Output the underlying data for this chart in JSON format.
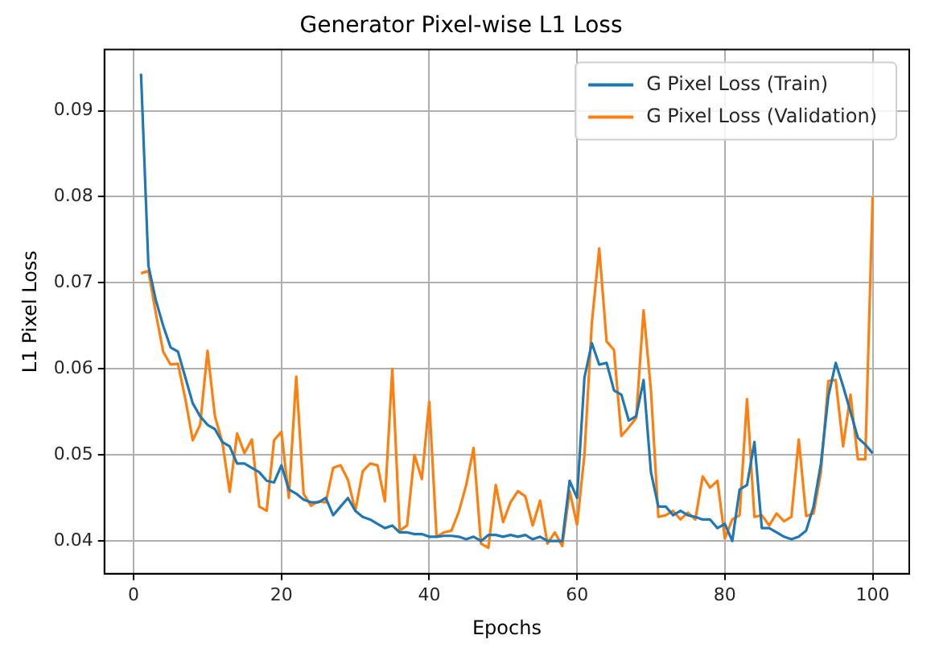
{
  "chart_data": {
    "type": "line",
    "title": "Generator Pixel-wise L1 Loss",
    "xlabel": "Epochs",
    "ylabel": "L1 Pixel Loss",
    "x": [
      1,
      2,
      3,
      4,
      5,
      6,
      7,
      8,
      9,
      10,
      11,
      12,
      13,
      14,
      15,
      16,
      17,
      18,
      19,
      20,
      21,
      22,
      23,
      24,
      25,
      26,
      27,
      28,
      29,
      30,
      31,
      32,
      33,
      34,
      35,
      36,
      37,
      38,
      39,
      40,
      41,
      42,
      43,
      44,
      45,
      46,
      47,
      48,
      49,
      50,
      51,
      52,
      53,
      54,
      55,
      56,
      57,
      58,
      59,
      60,
      61,
      62,
      63,
      64,
      65,
      66,
      67,
      68,
      69,
      70,
      71,
      72,
      73,
      74,
      75,
      76,
      77,
      78,
      79,
      80,
      81,
      82,
      83,
      84,
      85,
      86,
      87,
      88,
      89,
      90,
      91,
      92,
      93,
      94,
      95,
      96,
      97,
      98,
      99,
      100
    ],
    "series": [
      {
        "name": "G Pixel Loss (Train)",
        "color": "#1f77b4",
        "values": [
          0.0943,
          0.072,
          0.068,
          0.065,
          0.0625,
          0.062,
          0.059,
          0.056,
          0.0545,
          0.0535,
          0.053,
          0.0515,
          0.051,
          0.049,
          0.049,
          0.0485,
          0.048,
          0.047,
          0.0468,
          0.0488,
          0.046,
          0.0455,
          0.0448,
          0.0445,
          0.0445,
          0.045,
          0.043,
          0.044,
          0.045,
          0.0435,
          0.0428,
          0.0425,
          0.042,
          0.0415,
          0.0418,
          0.041,
          0.041,
          0.0408,
          0.0408,
          0.0405,
          0.0405,
          0.0406,
          0.0406,
          0.0405,
          0.0402,
          0.0405,
          0.04,
          0.0407,
          0.0407,
          0.0405,
          0.0407,
          0.0405,
          0.0407,
          0.0402,
          0.0405,
          0.04,
          0.04,
          0.04,
          0.047,
          0.045,
          0.059,
          0.063,
          0.0605,
          0.0607,
          0.0575,
          0.057,
          0.054,
          0.0545,
          0.0587,
          0.048,
          0.044,
          0.044,
          0.043,
          0.0435,
          0.043,
          0.0428,
          0.0425,
          0.0425,
          0.0415,
          0.042,
          0.04,
          0.046,
          0.0465,
          0.0515,
          0.0415,
          0.0415,
          0.041,
          0.0405,
          0.0402,
          0.0405,
          0.0412,
          0.044,
          0.049,
          0.0568,
          0.0607,
          0.058,
          0.055,
          0.052,
          0.0512,
          0.0502
        ]
      },
      {
        "name": "G Pixel Loss (Validation)",
        "color": "#ff7f0e",
        "values": [
          0.0711,
          0.0714,
          0.0665,
          0.062,
          0.0605,
          0.0606,
          0.0565,
          0.0517,
          0.0535,
          0.0621,
          0.0545,
          0.0515,
          0.0457,
          0.0525,
          0.0502,
          0.0518,
          0.044,
          0.0435,
          0.0517,
          0.0527,
          0.045,
          0.0591,
          0.0455,
          0.0441,
          0.0446,
          0.0445,
          0.0485,
          0.0488,
          0.0471,
          0.0435,
          0.0481,
          0.049,
          0.0488,
          0.0446,
          0.06,
          0.0412,
          0.0418,
          0.05,
          0.0472,
          0.0562,
          0.0405,
          0.041,
          0.0412,
          0.0434,
          0.0465,
          0.0508,
          0.0397,
          0.0392,
          0.0465,
          0.0422,
          0.0445,
          0.0458,
          0.0452,
          0.0418,
          0.0447,
          0.0397,
          0.041,
          0.0394,
          0.0458,
          0.0419,
          0.05,
          0.0653,
          0.074,
          0.0632,
          0.0622,
          0.0522,
          0.0532,
          0.0543,
          0.0668,
          0.0575,
          0.0428,
          0.043,
          0.0435,
          0.0425,
          0.0433,
          0.0425,
          0.0475,
          0.0462,
          0.047,
          0.0403,
          0.0425,
          0.043,
          0.0565,
          0.0428,
          0.043,
          0.0418,
          0.0432,
          0.0423,
          0.0428,
          0.0518,
          0.0429,
          0.0432,
          0.048,
          0.0586,
          0.0587,
          0.051,
          0.057,
          0.0495,
          0.0495,
          0.08
        ]
      }
    ],
    "xlim": [
      -3.95,
      104.95
    ],
    "xticks": [
      0,
      20,
      40,
      60,
      80,
      100
    ],
    "ylim": [
      0.0362,
      0.0971
    ],
    "yticks": [
      0.04,
      0.05,
      0.06,
      0.07,
      0.08,
      0.09
    ],
    "grid": true,
    "legend": "top right",
    "marker": "none",
    "line_style": "solid"
  }
}
